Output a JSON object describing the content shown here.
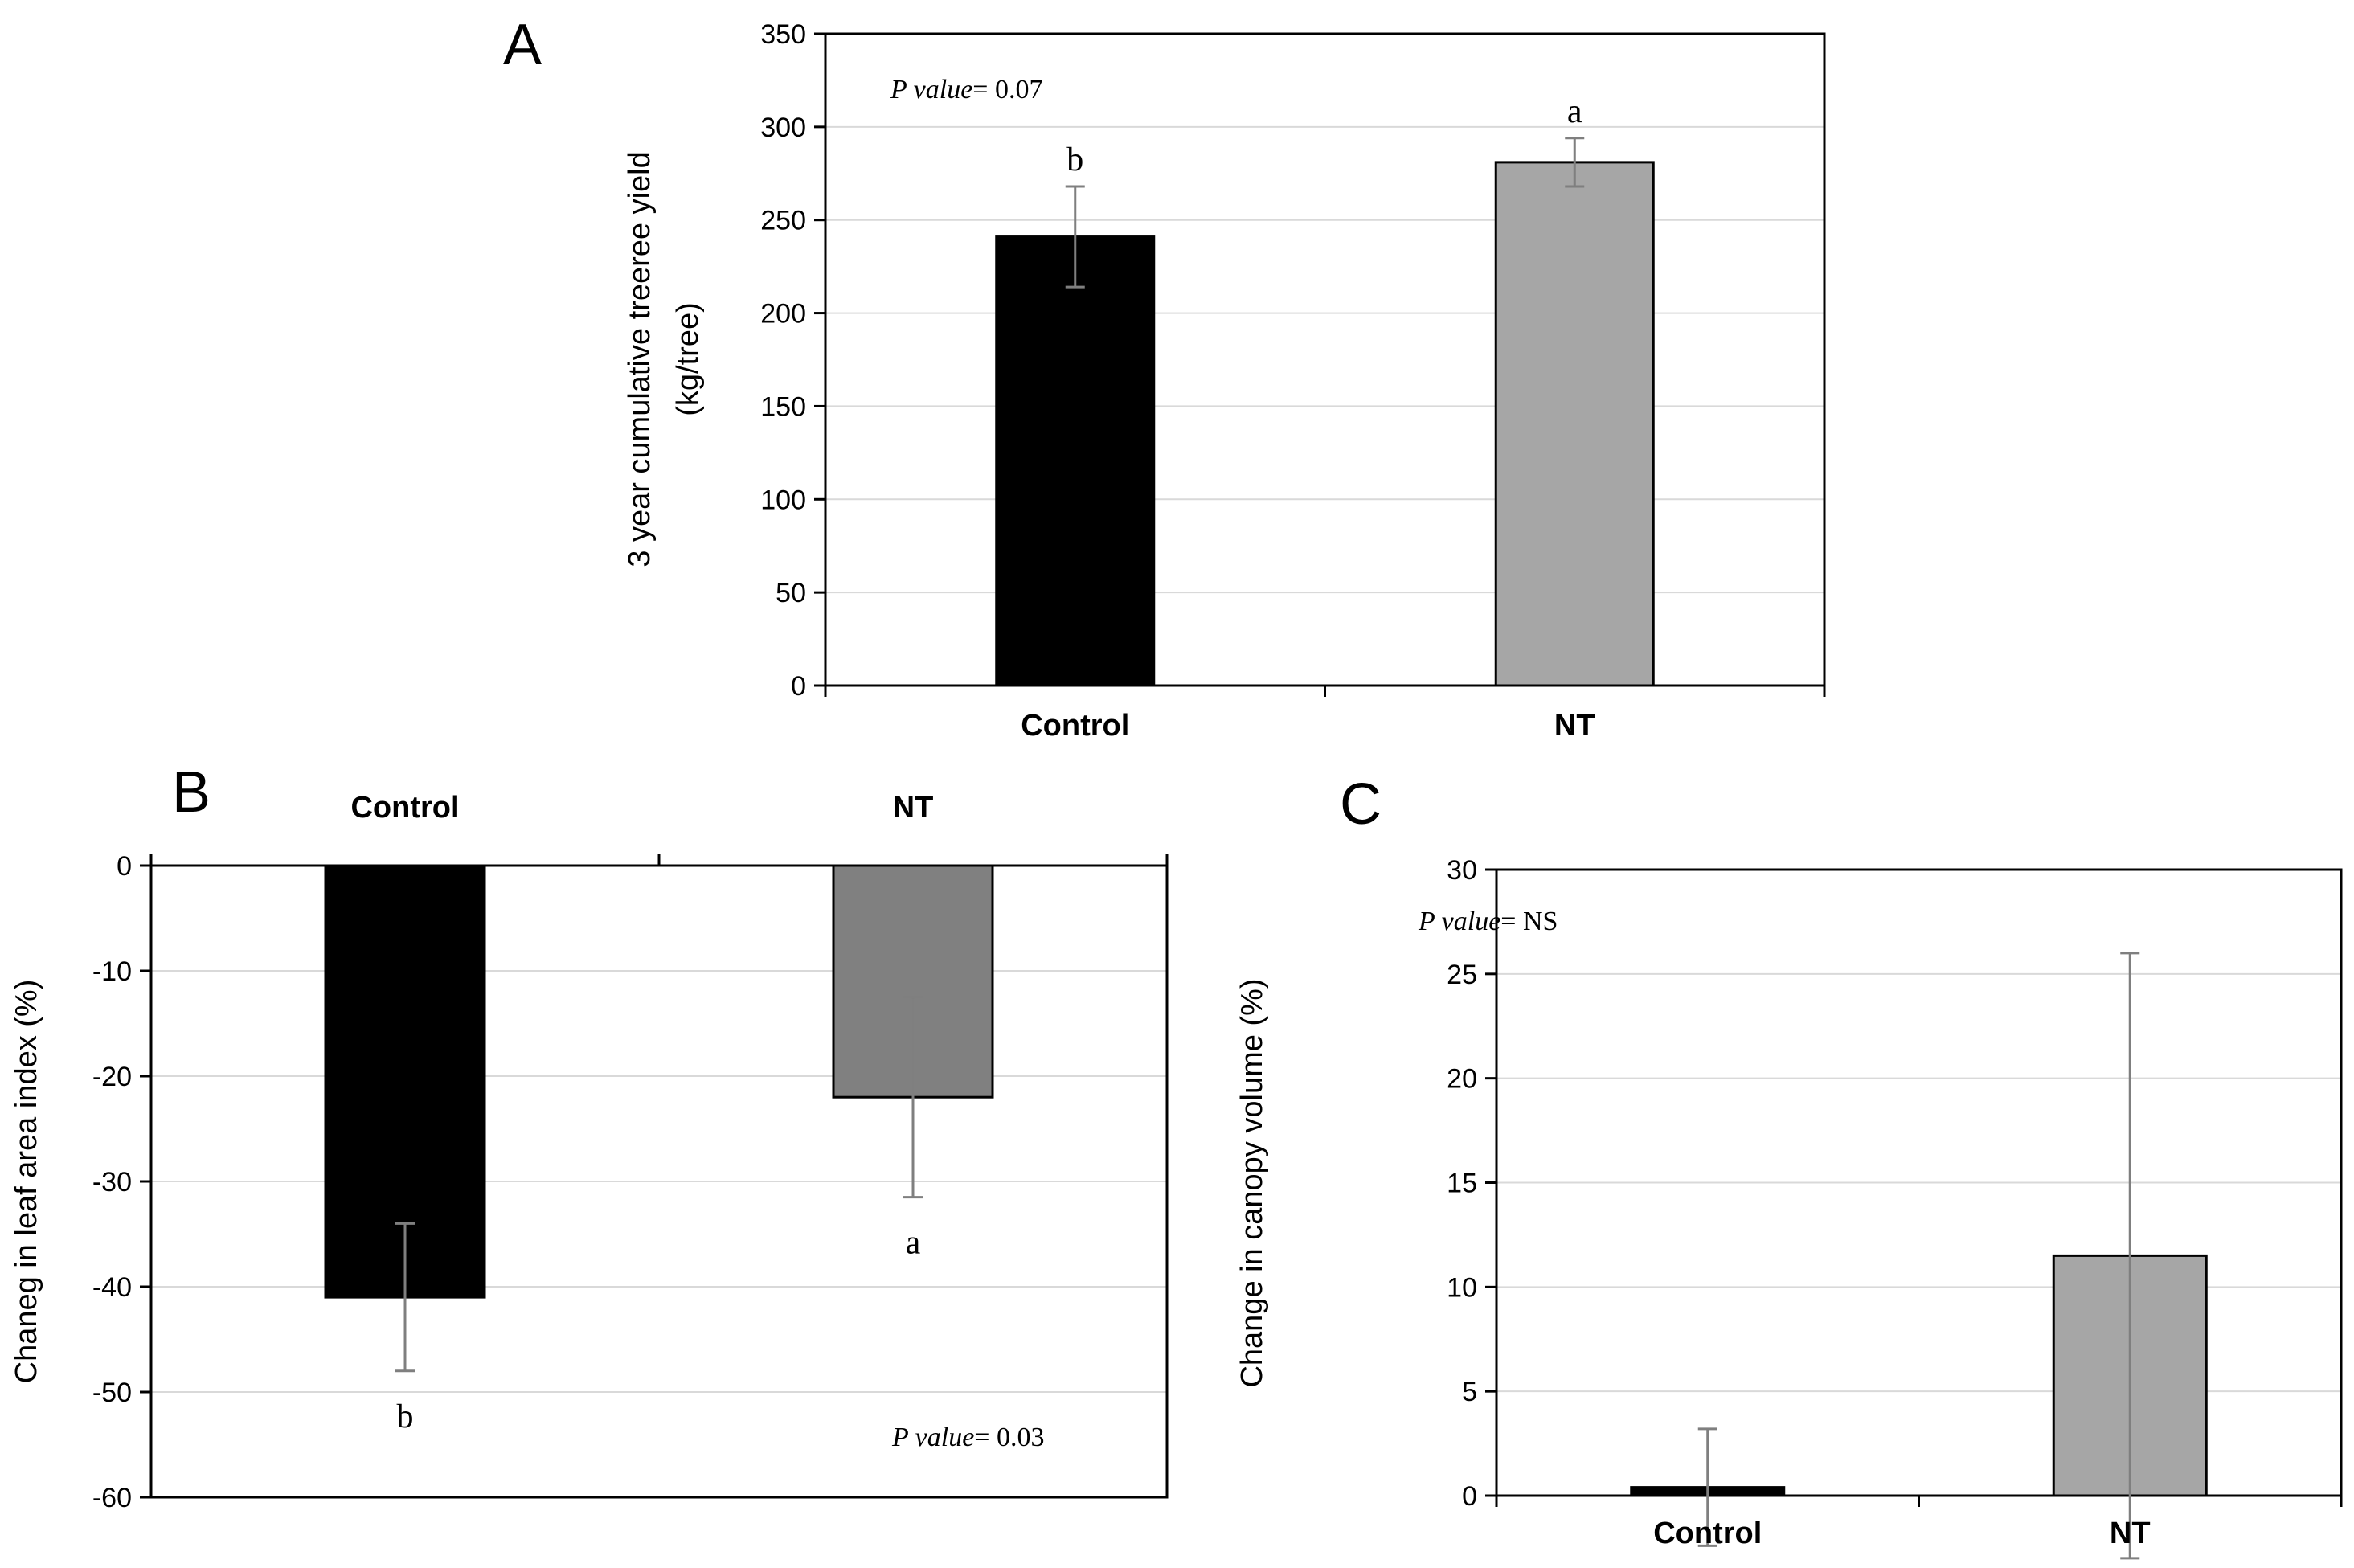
{
  "chart_data": [
    {
      "panel": "A",
      "type": "bar",
      "categories": [
        "Control",
        "NT"
      ],
      "values": [
        241,
        281
      ],
      "errors": [
        27,
        13
      ],
      "letters": [
        "b",
        "a"
      ],
      "colors": [
        "#000000",
        "#a6a6a6"
      ],
      "pvalue": {
        "label": "P value",
        "text": "= 0.07"
      },
      "ylabel_lines": [
        "3 year cumulative treeree yield",
        "(kg/tree)"
      ],
      "ylim": [
        0,
        350
      ],
      "yticks": [
        0,
        50,
        100,
        150,
        200,
        250,
        300,
        350
      ],
      "grid": true,
      "category_axis": "bottom"
    },
    {
      "panel": "B",
      "type": "bar",
      "categories": [
        "Control",
        "NT"
      ],
      "values": [
        -41,
        -22
      ],
      "errors": [
        7,
        9.5
      ],
      "letters": [
        "b",
        "a"
      ],
      "colors": [
        "#000000",
        "#808080"
      ],
      "pvalue": {
        "label": "P value",
        "text": "= 0.03"
      },
      "ylabel_lines": [
        "Chaneg in leaf area index (%)"
      ],
      "ylim": [
        -60,
        0
      ],
      "yticks": [
        0,
        -10,
        -20,
        -30,
        -40,
        -50,
        -60
      ],
      "grid": true,
      "category_axis": "top"
    },
    {
      "panel": "C",
      "type": "bar",
      "categories": [
        "Control",
        "NT"
      ],
      "values": [
        0.4,
        11.5
      ],
      "errors": [
        2.8,
        14.5
      ],
      "letters": [
        "",
        ""
      ],
      "colors": [
        "#000000",
        "#a6a6a6"
      ],
      "pvalue": {
        "label": "P value",
        "text": "= NS"
      },
      "ylabel_lines": [
        "Change in canopy volume (%)"
      ],
      "ylim": [
        0,
        30
      ],
      "yticks": [
        0,
        5,
        10,
        15,
        20,
        25,
        30
      ],
      "grid": true,
      "category_axis": "bottom"
    }
  ]
}
